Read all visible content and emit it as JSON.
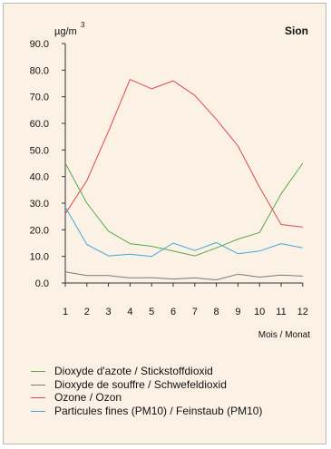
{
  "chart_data": {
    "type": "line",
    "title": "Sion",
    "unit_label": "µg/m",
    "unit_superscript": "3",
    "xlabel": "Mois / Monat",
    "ylabel": "",
    "x": [
      1,
      2,
      3,
      4,
      5,
      6,
      7,
      8,
      9,
      10,
      11,
      12
    ],
    "ylim": [
      0,
      90
    ],
    "yticks": [
      "0.0",
      "10.0",
      "20.0",
      "30.0",
      "40.0",
      "50.0",
      "60.0",
      "70.0",
      "80.0",
      "90.0"
    ],
    "grid": false,
    "legend_position": "bottom",
    "series": [
      {
        "name": "Dioxyde d'azote / Stickstoffdioxid",
        "color": "#5aa84a",
        "values": [
          45.0,
          30.0,
          19.5,
          14.8,
          13.8,
          12.0,
          10.2,
          13.2,
          16.5,
          19.0,
          33.5,
          45.0
        ]
      },
      {
        "name": "Dioxyde de souffre / Schwefeldioxid",
        "color": "#7a7a7a",
        "values": [
          4.2,
          2.8,
          2.8,
          1.9,
          2.0,
          1.5,
          1.9,
          1.2,
          3.3,
          2.2,
          3.0,
          2.6
        ]
      },
      {
        "name": "Ozone / Ozon",
        "color": "#e0474c",
        "values": [
          26.0,
          38.5,
          57.0,
          76.5,
          73.0,
          76.0,
          70.5,
          61.5,
          51.5,
          36.0,
          22.0,
          21.0
        ]
      },
      {
        "name": "Particules fines (PM10) / Feinstaub (PM10)",
        "color": "#3fa9dd",
        "values": [
          28.5,
          14.5,
          10.2,
          10.8,
          10.0,
          15.0,
          12.2,
          15.2,
          11.0,
          12.0,
          14.8,
          13.2
        ]
      }
    ]
  }
}
